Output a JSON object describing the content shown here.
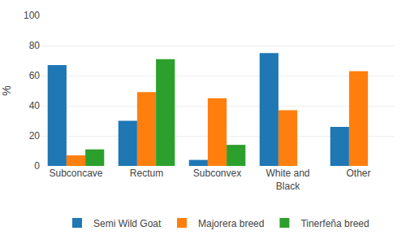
{
  "chart_data": {
    "type": "bar",
    "categories": [
      "Subconcave",
      "Rectum",
      "Subconvex",
      "White and\nBlack",
      "Other"
    ],
    "series": [
      {
        "name": "Semi Wild Goat",
        "values": [
          67,
          30,
          4,
          75,
          26
        ]
      },
      {
        "name": "Majorera breed",
        "values": [
          7,
          49,
          45,
          37,
          63
        ]
      },
      {
        "name": "Tinerfeña breed",
        "values": [
          11,
          71,
          14,
          0,
          0
        ]
      }
    ],
    "ylabel": "%",
    "ylim": [
      0,
      100
    ],
    "yticks": [
      0,
      20,
      40,
      60,
      80,
      100
    ],
    "grid": true,
    "legend": "bottom"
  }
}
